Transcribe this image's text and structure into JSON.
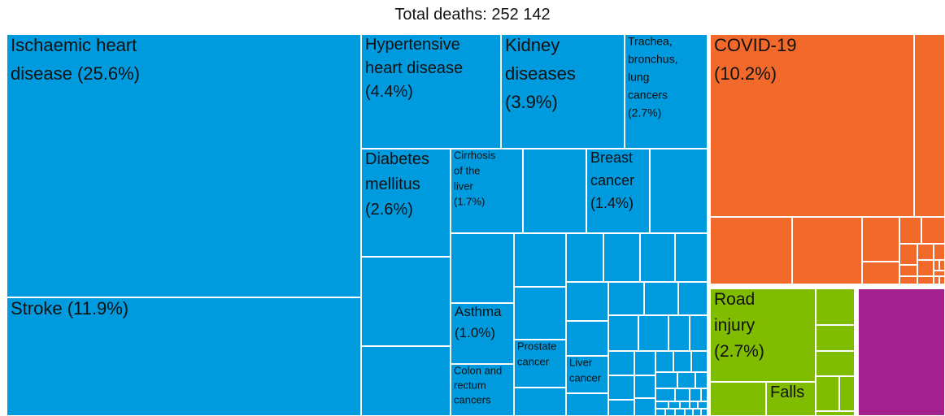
{
  "chart_data": {
    "type": "treemap",
    "title": "Total deaths: 252 142",
    "colors": {
      "blue": "#009ADE",
      "orange": "#F26A2B",
      "green": "#80BC00",
      "purple": "#A3218E"
    },
    "cells": [
      {
        "group": "blue",
        "label": [
          "Ischaemic heart",
          "disease (25.6%)"
        ],
        "share": 25.6
      },
      {
        "group": "blue",
        "label": [
          "Stroke (11.9%)"
        ],
        "share": 11.9
      },
      {
        "group": "blue",
        "label": [
          "Hypertensive",
          "heart disease",
          "(4.4%)"
        ],
        "share": 4.4
      },
      {
        "group": "blue",
        "label": [
          "Kidney",
          "diseases",
          "(3.9%)"
        ],
        "share": 3.9
      },
      {
        "group": "blue",
        "label": [
          "Trachea,",
          "bronchus,",
          "lung",
          "cancers",
          "(2.7%)"
        ],
        "share": 2.7
      },
      {
        "group": "blue",
        "label": [
          "Diabetes",
          "mellitus",
          "(2.6%)"
        ],
        "share": 2.6
      },
      {
        "group": "blue",
        "label": [
          "Cirrhosis",
          "of the",
          "liver",
          "(1.7%)"
        ],
        "share": 1.7
      },
      {
        "group": "blue",
        "label": [
          "Breast",
          "cancer",
          "(1.4%)"
        ],
        "share": 1.4
      },
      {
        "group": "blue",
        "label": [
          "Asthma",
          "(1.0%)"
        ],
        "share": 1.0
      },
      {
        "group": "blue",
        "label": [
          "Prostate",
          "cancer"
        ]
      },
      {
        "group": "blue",
        "label": [
          "Liver",
          "cancer"
        ]
      },
      {
        "group": "blue",
        "label": [
          "Colon and",
          "rectum",
          "cancers"
        ]
      },
      {
        "group": "orange",
        "label": [
          "COVID-19",
          "(10.2%)"
        ],
        "share": 10.2
      },
      {
        "group": "green",
        "label": [
          "Road",
          "injury",
          "(2.7%)"
        ],
        "share": 2.7
      },
      {
        "group": "green",
        "label": [
          "Falls"
        ]
      }
    ]
  }
}
